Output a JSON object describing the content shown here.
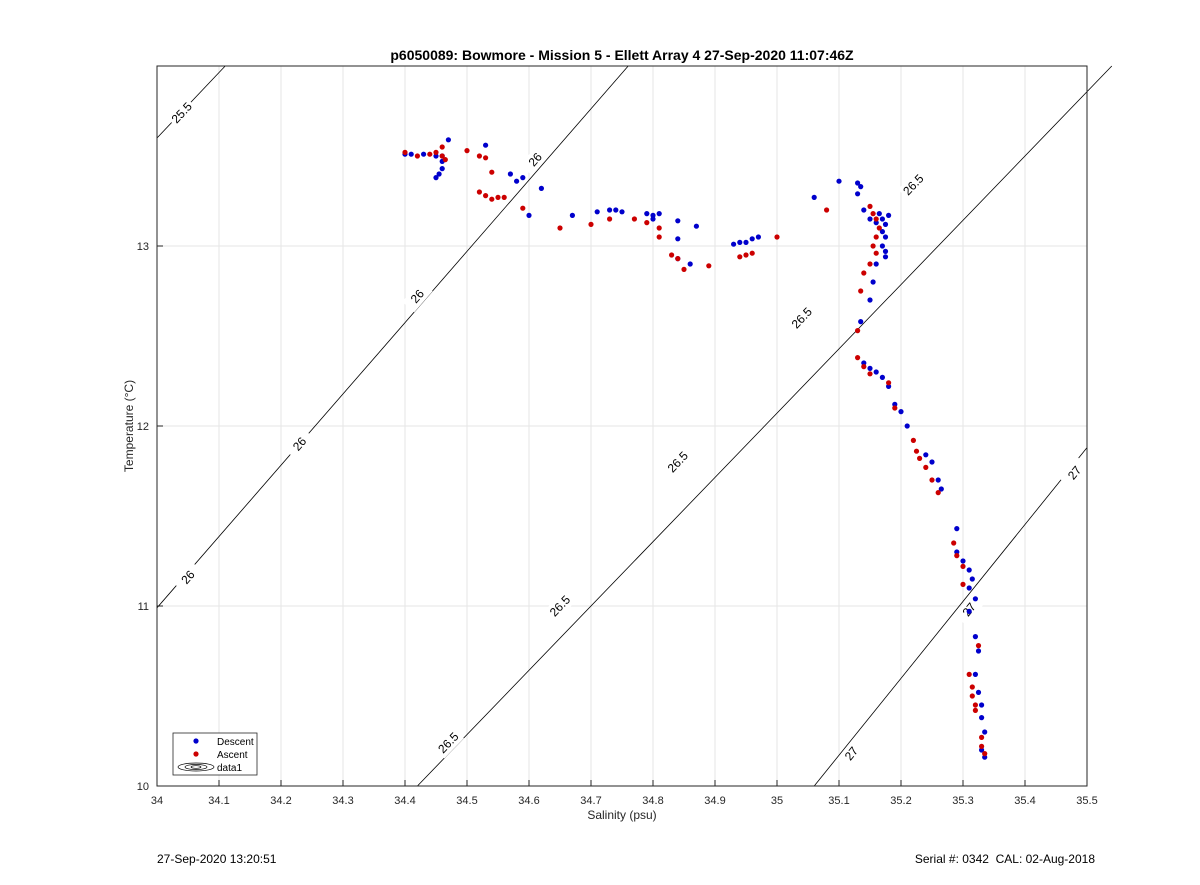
{
  "chart_data": {
    "type": "scatter",
    "title": "p6050089: Bowmore - Mission 5 - Ellett Array 4 27-Sep-2020 11:07:46Z",
    "xlabel": "Salinity (psu)",
    "ylabel": "Temperature (°C)",
    "xlim": [
      34,
      35.5
    ],
    "ylim": [
      10,
      14
    ],
    "xticks": [
      34,
      34.1,
      34.2,
      34.3,
      34.4,
      34.5,
      34.6,
      34.7,
      34.8,
      34.9,
      35,
      35.1,
      35.2,
      35.3,
      35.4,
      35.5
    ],
    "xtick_labels": [
      "34",
      "34.1",
      "34.2",
      "34.3",
      "34.4",
      "34.5",
      "34.6",
      "34.7",
      "34.8",
      "34.9",
      "35",
      "35.1",
      "35.2",
      "35.3",
      "35.4",
      "35.5"
    ],
    "yticks": [
      10,
      11,
      12,
      13
    ],
    "ytick_labels": [
      "10",
      "11",
      "12",
      "13"
    ],
    "grid": true,
    "legend_position": "bottom-left",
    "legend": [
      "Descent",
      "Ascent",
      "data1"
    ],
    "contours": [
      {
        "level": "25.5",
        "line": [
          [
            34.0,
            13.6
          ],
          [
            34.11,
            14.0
          ]
        ],
        "labels": [
          [
            34.04,
            13.74
          ]
        ]
      },
      {
        "level": "26",
        "line": [
          [
            34.0,
            10.99
          ],
          [
            34.76,
            14.0
          ]
        ],
        "labels": [
          [
            34.05,
            11.16
          ],
          [
            34.23,
            11.9
          ],
          [
            34.42,
            12.72
          ],
          [
            34.61,
            13.48
          ]
        ]
      },
      {
        "level": "26.5",
        "line": [
          [
            34.42,
            10.0
          ],
          [
            35.54,
            14.0
          ]
        ],
        "labels": [
          [
            34.47,
            10.24
          ],
          [
            34.65,
            11.0
          ],
          [
            34.84,
            11.8
          ],
          [
            35.04,
            12.6
          ],
          [
            35.22,
            13.34
          ]
        ]
      },
      {
        "level": "27",
        "line": [
          [
            35.06,
            10.0
          ],
          [
            35.5,
            11.88
          ]
        ],
        "labels": [
          [
            35.12,
            10.18
          ],
          [
            35.31,
            10.98
          ],
          [
            35.48,
            11.74
          ]
        ]
      }
    ],
    "series": [
      {
        "name": "Descent",
        "color": "#0000cc",
        "points": [
          [
            34.4,
            13.51
          ],
          [
            34.41,
            13.51
          ],
          [
            34.43,
            13.51
          ],
          [
            34.45,
            13.5
          ],
          [
            34.46,
            13.5
          ],
          [
            34.47,
            13.59
          ],
          [
            34.45,
            13.38
          ],
          [
            34.455,
            13.4
          ],
          [
            34.46,
            13.43
          ],
          [
            34.46,
            13.47
          ],
          [
            34.53,
            13.56
          ],
          [
            34.57,
            13.4
          ],
          [
            34.58,
            13.36
          ],
          [
            34.59,
            13.38
          ],
          [
            34.62,
            13.32
          ],
          [
            34.6,
            13.17
          ],
          [
            34.67,
            13.17
          ],
          [
            34.71,
            13.19
          ],
          [
            34.73,
            13.2
          ],
          [
            34.74,
            13.2
          ],
          [
            34.75,
            13.19
          ],
          [
            34.79,
            13.18
          ],
          [
            34.8,
            13.17
          ],
          [
            34.81,
            13.18
          ],
          [
            34.8,
            13.15
          ],
          [
            34.84,
            13.14
          ],
          [
            34.87,
            13.11
          ],
          [
            34.84,
            13.04
          ],
          [
            34.84,
            12.93
          ],
          [
            34.86,
            12.9
          ],
          [
            34.93,
            13.01
          ],
          [
            34.94,
            13.02
          ],
          [
            34.95,
            13.02
          ],
          [
            34.96,
            13.04
          ],
          [
            34.97,
            13.05
          ],
          [
            35.06,
            13.27
          ],
          [
            35.1,
            13.36
          ],
          [
            35.13,
            13.35
          ],
          [
            35.135,
            13.33
          ],
          [
            35.13,
            13.29
          ],
          [
            35.14,
            13.2
          ],
          [
            35.15,
            13.15
          ],
          [
            35.16,
            13.13
          ],
          [
            35.165,
            13.18
          ],
          [
            35.17,
            13.15
          ],
          [
            35.175,
            13.12
          ],
          [
            35.18,
            13.17
          ],
          [
            35.17,
            13.08
          ],
          [
            35.175,
            13.05
          ],
          [
            35.17,
            13.0
          ],
          [
            35.175,
            12.97
          ],
          [
            35.175,
            12.94
          ],
          [
            35.16,
            12.9
          ],
          [
            35.155,
            12.8
          ],
          [
            35.15,
            12.7
          ],
          [
            35.135,
            12.58
          ],
          [
            35.14,
            12.35
          ],
          [
            35.15,
            12.32
          ],
          [
            35.16,
            12.3
          ],
          [
            35.17,
            12.27
          ],
          [
            35.18,
            12.22
          ],
          [
            35.19,
            12.12
          ],
          [
            35.2,
            12.08
          ],
          [
            35.21,
            12.0
          ],
          [
            35.24,
            11.84
          ],
          [
            35.25,
            11.8
          ],
          [
            35.26,
            11.7
          ],
          [
            35.265,
            11.65
          ],
          [
            35.29,
            11.43
          ],
          [
            35.29,
            11.3
          ],
          [
            35.3,
            11.25
          ],
          [
            35.31,
            11.2
          ],
          [
            35.315,
            11.15
          ],
          [
            35.31,
            11.1
          ],
          [
            35.32,
            11.04
          ],
          [
            35.31,
            10.97
          ],
          [
            35.32,
            10.83
          ],
          [
            35.325,
            10.75
          ],
          [
            35.32,
            10.62
          ],
          [
            35.325,
            10.52
          ],
          [
            35.33,
            10.45
          ],
          [
            35.33,
            10.38
          ],
          [
            35.335,
            10.3
          ],
          [
            35.33,
            10.2
          ],
          [
            35.335,
            10.16
          ]
        ]
      },
      {
        "name": "Ascent",
        "color": "#cc0000",
        "points": [
          [
            34.4,
            13.52
          ],
          [
            34.42,
            13.5
          ],
          [
            34.44,
            13.51
          ],
          [
            34.45,
            13.52
          ],
          [
            34.46,
            13.5
          ],
          [
            34.465,
            13.48
          ],
          [
            34.46,
            13.55
          ],
          [
            34.5,
            13.53
          ],
          [
            34.52,
            13.5
          ],
          [
            34.53,
            13.49
          ],
          [
            34.54,
            13.41
          ],
          [
            34.52,
            13.3
          ],
          [
            34.53,
            13.28
          ],
          [
            34.54,
            13.26
          ],
          [
            34.55,
            13.27
          ],
          [
            34.56,
            13.27
          ],
          [
            34.59,
            13.21
          ],
          [
            34.65,
            13.1
          ],
          [
            34.7,
            13.12
          ],
          [
            34.73,
            13.15
          ],
          [
            34.77,
            13.15
          ],
          [
            34.79,
            13.13
          ],
          [
            34.81,
            13.1
          ],
          [
            34.81,
            13.05
          ],
          [
            34.83,
            12.95
          ],
          [
            34.84,
            12.93
          ],
          [
            34.85,
            12.87
          ],
          [
            34.89,
            12.89
          ],
          [
            34.94,
            12.94
          ],
          [
            34.95,
            12.95
          ],
          [
            34.96,
            12.96
          ],
          [
            35.0,
            13.05
          ],
          [
            35.08,
            13.2
          ],
          [
            35.15,
            13.22
          ],
          [
            35.155,
            13.18
          ],
          [
            35.16,
            13.15
          ],
          [
            35.165,
            13.1
          ],
          [
            35.16,
            13.05
          ],
          [
            35.155,
            13.0
          ],
          [
            35.16,
            12.96
          ],
          [
            35.15,
            12.9
          ],
          [
            35.14,
            12.85
          ],
          [
            35.135,
            12.75
          ],
          [
            35.13,
            12.53
          ],
          [
            35.13,
            12.38
          ],
          [
            35.14,
            12.33
          ],
          [
            35.15,
            12.29
          ],
          [
            35.18,
            12.24
          ],
          [
            35.19,
            12.1
          ],
          [
            35.22,
            11.92
          ],
          [
            35.225,
            11.86
          ],
          [
            35.23,
            11.82
          ],
          [
            35.24,
            11.77
          ],
          [
            35.25,
            11.7
          ],
          [
            35.26,
            11.63
          ],
          [
            35.285,
            11.35
          ],
          [
            35.29,
            11.28
          ],
          [
            35.3,
            11.22
          ],
          [
            35.3,
            11.12
          ],
          [
            35.31,
            10.62
          ],
          [
            35.315,
            10.55
          ],
          [
            35.315,
            10.5
          ],
          [
            35.32,
            10.45
          ],
          [
            35.32,
            10.42
          ],
          [
            35.325,
            10.78
          ],
          [
            35.33,
            10.27
          ],
          [
            35.33,
            10.22
          ],
          [
            35.335,
            10.18
          ]
        ]
      }
    ]
  },
  "footer": {
    "left": "27-Sep-2020 13:20:51",
    "right": "Serial #: 0342  CAL: 02-Aug-2018"
  }
}
